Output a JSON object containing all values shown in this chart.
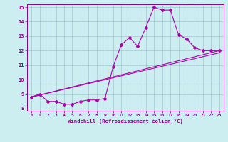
{
  "xlabel": "Windchill (Refroidissement éolien,°C)",
  "bg_color": "#cceef0",
  "line_color": "#aa00aa",
  "xlim": [
    -0.5,
    23.5
  ],
  "ylim": [
    7.85,
    15.2
  ],
  "xticks": [
    0,
    1,
    2,
    3,
    4,
    5,
    6,
    7,
    8,
    9,
    10,
    11,
    12,
    13,
    14,
    15,
    16,
    17,
    18,
    19,
    20,
    21,
    22,
    23
  ],
  "yticks": [
    8,
    9,
    10,
    11,
    12,
    13,
    14,
    15
  ],
  "line1_x": [
    0,
    1,
    2,
    3,
    4,
    5,
    6,
    7,
    8,
    9,
    10,
    11,
    12,
    13,
    14,
    15,
    16,
    17,
    18,
    19,
    20,
    21,
    22,
    23
  ],
  "line1_y": [
    8.8,
    9.0,
    8.5,
    8.5,
    8.3,
    8.3,
    8.5,
    8.6,
    8.6,
    8.7,
    10.9,
    12.4,
    12.9,
    12.3,
    13.6,
    15.0,
    14.8,
    14.8,
    13.1,
    12.8,
    12.2,
    12.0,
    12.0,
    12.0
  ],
  "line2_x": [
    0,
    23
  ],
  "line2_y": [
    8.8,
    12.0
  ],
  "line3_x": [
    0,
    23
  ],
  "line3_y": [
    8.8,
    11.85
  ]
}
